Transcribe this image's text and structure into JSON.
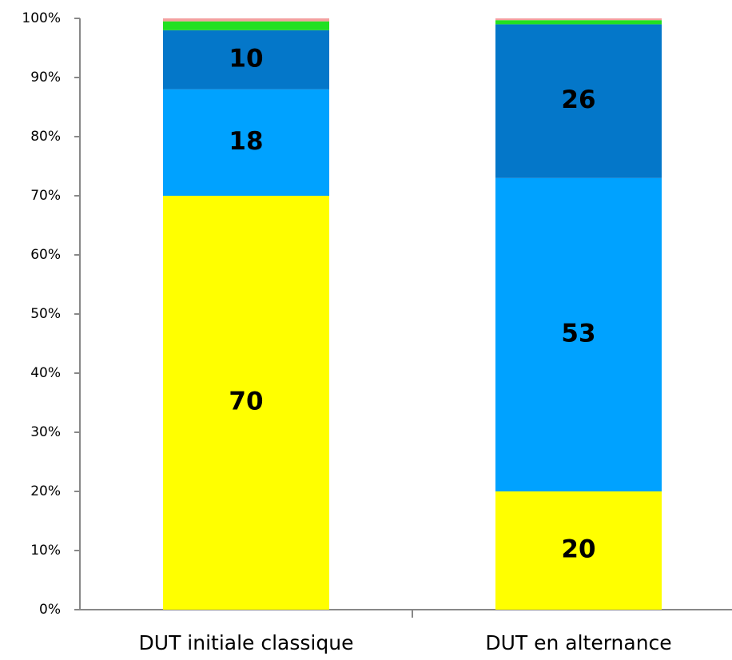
{
  "chart_data": {
    "type": "stacked_bar",
    "categories": [
      "DUT initiale classique",
      "DUT en alternance"
    ],
    "series": [
      {
        "color": "#ffff00",
        "values": [
          70,
          20
        ],
        "data_labels": true
      },
      {
        "color": "#00a2ff",
        "values": [
          18,
          53
        ],
        "data_labels": true
      },
      {
        "color": "#0477c9",
        "values": [
          10,
          26
        ],
        "data_labels": true
      },
      {
        "color": "#22e022",
        "values": [
          1.5,
          0.7
        ],
        "data_labels": false
      },
      {
        "color": "#f4a0a0",
        "values": [
          0.5,
          0.3
        ],
        "data_labels": false
      }
    ],
    "ylim": [
      0,
      100
    ],
    "yticks": [
      {
        "value": 0,
        "label": "0%"
      },
      {
        "value": 10,
        "label": "10%"
      },
      {
        "value": 20,
        "label": "20%"
      },
      {
        "value": 30,
        "label": "30%"
      },
      {
        "value": 40,
        "label": "40%"
      },
      {
        "value": 50,
        "label": "50%"
      },
      {
        "value": 60,
        "label": "60%"
      },
      {
        "value": 70,
        "label": "70%"
      },
      {
        "value": 80,
        "label": "80%"
      },
      {
        "value": 90,
        "label": "90%"
      },
      {
        "value": 100,
        "label": "100%"
      }
    ],
    "grid": false
  }
}
